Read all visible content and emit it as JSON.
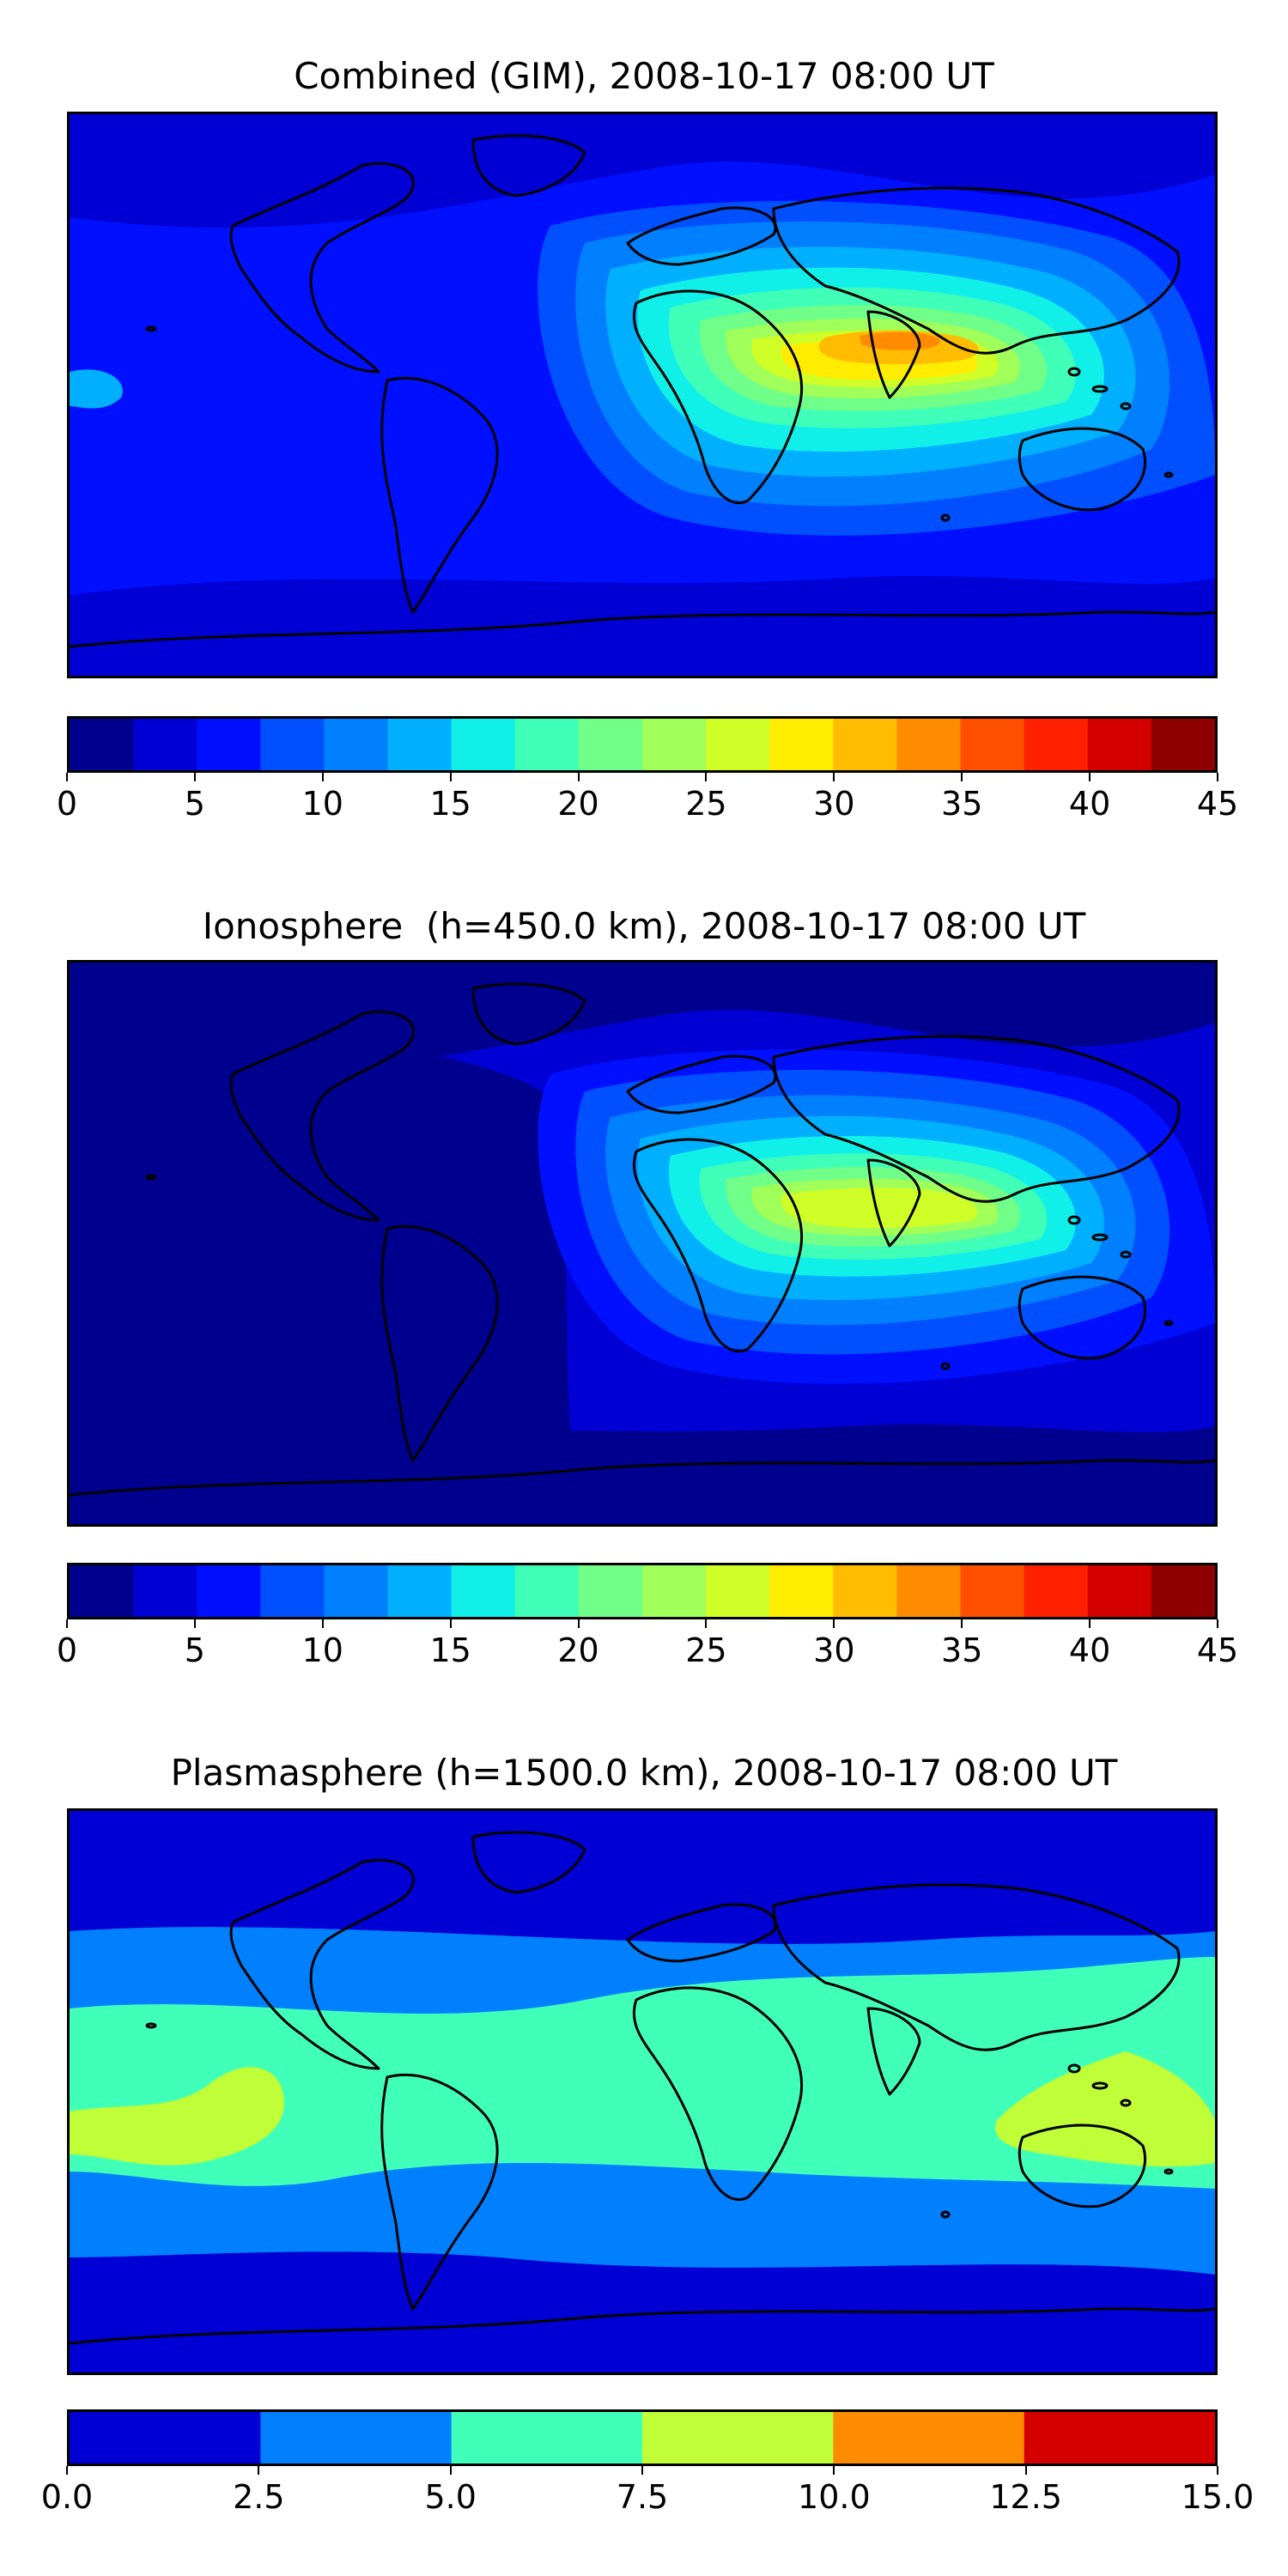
{
  "panels": [
    {
      "title": "Combined (GIM), 2008-10-17 08:00 UT",
      "colorbar": {
        "min": 0,
        "max": 45,
        "ticks": [
          "0",
          "5",
          "10",
          "15",
          "20",
          "25",
          "30",
          "35",
          "40",
          "45"
        ],
        "colors": [
          "#00008f",
          "#0000d4",
          "#0010ff",
          "#0050ff",
          "#0080ff",
          "#00b0ff",
          "#10f0e8",
          "#40ffb8",
          "#70ff88",
          "#a0ff58",
          "#d0ff28",
          "#ffec00",
          "#ffbc00",
          "#ff8c00",
          "#ff5000",
          "#ff2000",
          "#d40000",
          "#8f0000"
        ]
      },
      "field": {
        "background": "#0010ff",
        "regions": [
          {
            "level": 1,
            "shape": "band-north",
            "color": "#0000d4"
          },
          {
            "level": 1,
            "shape": "band-south",
            "color": "#0000d4"
          },
          {
            "level": 5,
            "shape": "west-patch",
            "color": "#00b0ff"
          },
          {
            "level": 3,
            "shape": "crest-1",
            "color": "#0050ff"
          },
          {
            "level": 4,
            "shape": "crest-2",
            "color": "#0080ff"
          },
          {
            "level": 5,
            "shape": "crest-3",
            "color": "#00b0ff"
          },
          {
            "level": 6,
            "shape": "crest-4",
            "color": "#10f0e8"
          },
          {
            "level": 7,
            "shape": "crest-5",
            "color": "#40ffb8"
          },
          {
            "level": 8,
            "shape": "crest-6",
            "color": "#70ff88"
          },
          {
            "level": 9,
            "shape": "crest-7",
            "color": "#a0ff58"
          },
          {
            "level": 10,
            "shape": "crest-8",
            "color": "#d0ff28"
          },
          {
            "level": 11,
            "shape": "crest-9",
            "color": "#ffec00"
          },
          {
            "level": 12,
            "shape": "crest-10",
            "color": "#ffbc00"
          },
          {
            "level": 13,
            "shape": "crest-11",
            "color": "#ff8c00"
          }
        ]
      }
    },
    {
      "title": "Ionosphere  (h=450.0 km), 2008-10-17 08:00 UT",
      "colorbar": {
        "min": 0,
        "max": 45,
        "ticks": [
          "0",
          "5",
          "10",
          "15",
          "20",
          "25",
          "30",
          "35",
          "40",
          "45"
        ],
        "colors": [
          "#00008f",
          "#0000d4",
          "#0010ff",
          "#0050ff",
          "#0080ff",
          "#00b0ff",
          "#10f0e8",
          "#40ffb8",
          "#70ff88",
          "#a0ff58",
          "#d0ff28",
          "#ffec00",
          "#ffbc00",
          "#ff8c00",
          "#ff5000",
          "#ff2000",
          "#d40000",
          "#8f0000"
        ]
      },
      "field": {
        "background": "#0000d4",
        "regions": [
          {
            "level": 0,
            "shape": "west-dark",
            "color": "#00008f"
          },
          {
            "level": 0,
            "shape": "band-north",
            "color": "#00008f"
          },
          {
            "level": 0,
            "shape": "band-south",
            "color": "#00008f"
          },
          {
            "level": 2,
            "shape": "crest-1",
            "color": "#0010ff"
          },
          {
            "level": 3,
            "shape": "crest-2",
            "color": "#0050ff"
          },
          {
            "level": 4,
            "shape": "crest-3",
            "color": "#0080ff"
          },
          {
            "level": 5,
            "shape": "crest-4",
            "color": "#00b0ff"
          },
          {
            "level": 6,
            "shape": "crest-5",
            "color": "#10f0e8"
          },
          {
            "level": 7,
            "shape": "crest-6",
            "color": "#40ffb8"
          },
          {
            "level": 8,
            "shape": "crest-7",
            "color": "#70ff88"
          },
          {
            "level": 9,
            "shape": "crest-8",
            "color": "#a0ff58"
          },
          {
            "level": 10,
            "shape": "crest-9",
            "color": "#d0ff28"
          }
        ]
      }
    },
    {
      "title": "Plasmasphere (h=1500.0 km), 2008-10-17 08:00 UT",
      "colorbar": {
        "min": 0,
        "max": 15,
        "ticks": [
          "0.0",
          "2.5",
          "5.0",
          "7.5",
          "10.0",
          "12.5",
          "15.0"
        ],
        "colors": [
          "#0000d4",
          "#0080ff",
          "#40ffb8",
          "#c0ff38",
          "#ff8c00",
          "#d40000"
        ]
      },
      "field": {
        "background": "#0000d4",
        "regions": [
          {
            "level": 1,
            "shape": "plasma-band",
            "color": "#0080ff"
          },
          {
            "level": 2,
            "shape": "plasma-inner",
            "color": "#40ffb8"
          },
          {
            "level": 3,
            "shape": "plasma-west",
            "color": "#c0ff38"
          },
          {
            "level": 3,
            "shape": "plasma-east",
            "color": "#c0ff38"
          }
        ]
      }
    }
  ]
}
